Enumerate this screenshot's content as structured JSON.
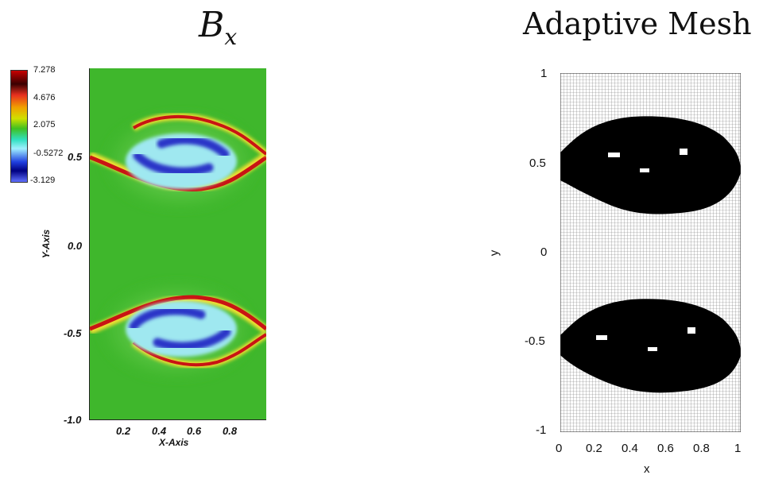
{
  "left_panel": {
    "title_main": "B",
    "title_sub": "x",
    "colorbar_labels": [
      "7.278",
      "4.676",
      "2.075",
      "-0.5272",
      "-3.129"
    ],
    "y_ticks": [
      "0.5",
      "0.0",
      "-0.5",
      "-1.0"
    ],
    "x_ticks": [
      "0.2",
      "0.4",
      "0.6",
      "0.8"
    ],
    "x_axis_label": "X-Axis",
    "y_axis_label": "Y-Axis",
    "colors": {
      "background": "#3fb72c",
      "high": "#c81414",
      "low": "#2a34c8",
      "mid": "#7fe0e0"
    }
  },
  "right_panel": {
    "title": "Adaptive Mesh",
    "y_ticks": [
      "1",
      "0.5",
      "0",
      "-0.5",
      "-1"
    ],
    "x_ticks": [
      "0",
      "0.2",
      "0.4",
      "0.6",
      "0.8",
      "1"
    ],
    "x_axis_label": "x",
    "y_axis_label": "y"
  }
}
